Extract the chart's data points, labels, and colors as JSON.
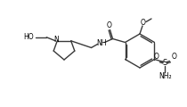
{
  "bg_color": "#ffffff",
  "line_color": "#3a3a3a",
  "text_color": "#000000",
  "bond_lw": 1.0,
  "figsize": [
    2.1,
    1.2
  ],
  "dpi": 100,
  "xlim": [
    0,
    210
  ],
  "ylim": [
    0,
    120
  ]
}
